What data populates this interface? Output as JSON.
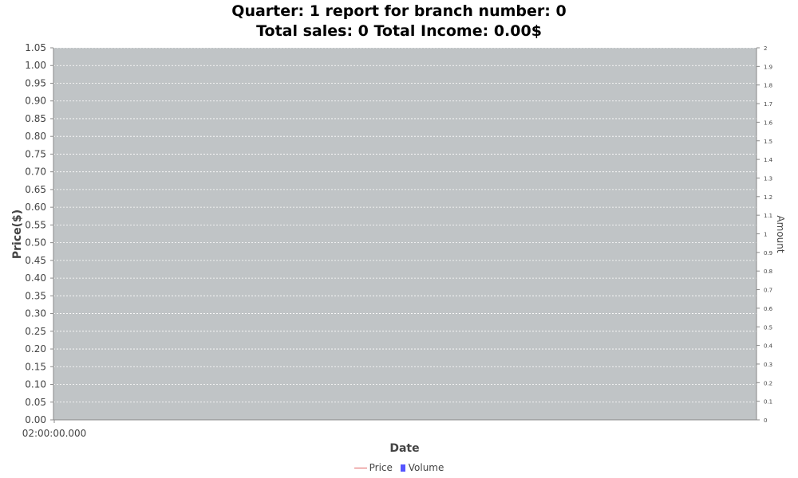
{
  "chart_data": {
    "type": "line",
    "title_lines": [
      "Quarter: 1 report for branch number: 0",
      "Total sales: 0 Total Income: 0.00$"
    ],
    "xlabel": "Date",
    "ylabel": "Price($)",
    "y2label": "Amount",
    "x_tick_labels": [
      "02:00:00.000"
    ],
    "ylim": [
      0,
      1.05
    ],
    "y_ticks": [
      "0.00",
      "0.05",
      "0.10",
      "0.15",
      "0.20",
      "0.25",
      "0.30",
      "0.35",
      "0.40",
      "0.45",
      "0.50",
      "0.55",
      "0.60",
      "0.65",
      "0.70",
      "0.75",
      "0.80",
      "0.85",
      "0.90",
      "0.95",
      "1.00",
      "1.05"
    ],
    "y2lim": [
      0,
      2
    ],
    "y2_ticks": [
      "0",
      "0.1",
      "0.2",
      "0.3",
      "0.4",
      "0.5",
      "0.6",
      "0.7",
      "0.8",
      "0.9",
      "1",
      "1.1",
      "1.2",
      "1.3",
      "1.4",
      "1.5",
      "1.6",
      "1.7",
      "1.8",
      "1.9",
      "2"
    ],
    "grid": true,
    "plot_background": "#c0c4c6",
    "gridline_color": "#ffffff",
    "series": [
      {
        "name": "Price",
        "kind": "line",
        "color": "#e06060",
        "values": []
      },
      {
        "name": "Volume",
        "kind": "bar",
        "color": "#5555ff",
        "values": []
      }
    ],
    "legend_position": "bottom"
  }
}
